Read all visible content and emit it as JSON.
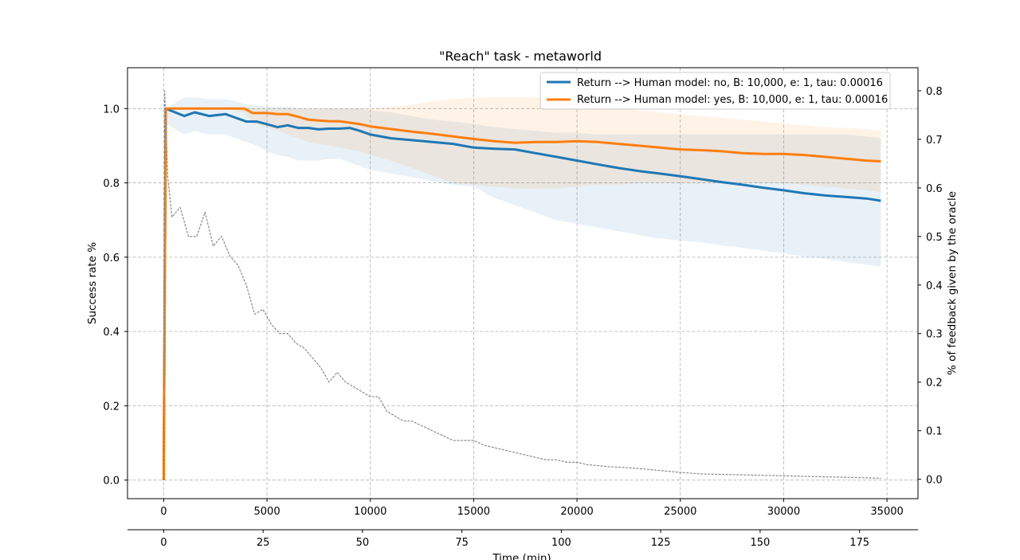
{
  "chart_data": {
    "type": "line",
    "title": "\"Reach\" task - metaworld",
    "ylabel": "Success rate %",
    "ylabel_right": "% of feedback given by the oracle",
    "xlabel_bottom": "Time (min)",
    "xlim": [
      -1750,
      36500
    ],
    "ylim": [
      -0.05,
      1.11
    ],
    "ylim_right": [
      -0.04,
      0.8475
    ],
    "x_ticks": [
      0,
      5000,
      10000,
      15000,
      20000,
      25000,
      30000,
      35000
    ],
    "x_tick_labels": [
      "0",
      "5000",
      "10000",
      "15000",
      "20000",
      "25000",
      "30000",
      "35000"
    ],
    "y_ticks": [
      0.0,
      0.2,
      0.4,
      0.6,
      0.8,
      1.0
    ],
    "y_tick_labels": [
      "0.0",
      "0.2",
      "0.4",
      "0.6",
      "0.8",
      "1.0"
    ],
    "y_right_ticks": [
      0.0,
      0.1,
      0.2,
      0.3,
      0.4,
      0.5,
      0.6,
      0.7,
      0.8
    ],
    "y_right_tick_labels": [
      "0.0",
      "0.1",
      "0.2",
      "0.3",
      "0.4",
      "0.5",
      "0.6",
      "0.7",
      "0.8"
    ],
    "time_ticks_min": [
      0,
      25,
      50,
      75,
      100,
      125,
      150,
      175
    ],
    "time_tick_labels": [
      "0",
      "25",
      "50",
      "75",
      "100",
      "125",
      "150",
      "175"
    ],
    "time_axis_xlim_min": [
      -9.1,
      189.7
    ],
    "grid": true,
    "legend_position": "top-right",
    "series": [
      {
        "name": "Return --> Human model: no, B: 10,000, e: 1, tau: 0.00016",
        "color": "#1f77b4",
        "x": [
          0,
          100,
          1000,
          1500,
          2200,
          3000,
          3500,
          4000,
          4500,
          5000,
          5500,
          6000,
          6500,
          7000,
          7500,
          8000,
          8500,
          9000,
          9500,
          10000,
          11000,
          12000,
          13000,
          14000,
          15000,
          16000,
          17000,
          18000,
          19000,
          20000,
          21000,
          22000,
          23000,
          24000,
          25000,
          26000,
          27000,
          28000,
          29000,
          30000,
          31000,
          32000,
          33000,
          34000,
          34700
        ],
        "y": [
          0.0,
          1.0,
          0.98,
          0.99,
          0.98,
          0.985,
          0.975,
          0.965,
          0.965,
          0.958,
          0.95,
          0.955,
          0.948,
          0.948,
          0.944,
          0.946,
          0.946,
          0.948,
          0.94,
          0.93,
          0.92,
          0.915,
          0.91,
          0.905,
          0.895,
          0.892,
          0.89,
          0.88,
          0.87,
          0.86,
          0.85,
          0.84,
          0.832,
          0.825,
          0.818,
          0.81,
          0.802,
          0.795,
          0.787,
          0.78,
          0.772,
          0.766,
          0.762,
          0.758,
          0.752
        ],
        "band_upper": [
          0.0,
          1.0,
          1.03,
          1.03,
          1.025,
          1.025,
          1.02,
          1.01,
          1.01,
          1.005,
          1.005,
          1.005,
          1.0,
          1.0,
          1.0,
          1.0,
          1.0,
          1.0,
          1.0,
          0.995,
          0.99,
          0.98,
          0.97,
          0.965,
          0.958,
          0.95,
          0.945,
          0.94,
          0.935,
          0.935,
          0.93,
          0.93,
          0.93,
          0.93,
          0.93,
          0.93,
          0.93,
          0.93,
          0.93,
          0.93,
          0.93,
          0.93,
          0.93,
          0.925,
          0.92
        ],
        "band_lower": [
          0.0,
          0.96,
          0.93,
          0.94,
          0.93,
          0.93,
          0.92,
          0.91,
          0.9,
          0.885,
          0.875,
          0.87,
          0.86,
          0.86,
          0.86,
          0.865,
          0.865,
          0.855,
          0.845,
          0.835,
          0.825,
          0.815,
          0.805,
          0.795,
          0.79,
          0.76,
          0.74,
          0.72,
          0.7,
          0.69,
          0.68,
          0.67,
          0.66,
          0.65,
          0.645,
          0.64,
          0.632,
          0.625,
          0.618,
          0.61,
          0.602,
          0.595,
          0.587,
          0.58,
          0.575
        ]
      },
      {
        "name": "Return --> Human model: yes, B: 10,000, e: 1, tau: 0.00016",
        "color": "#ff7f0e",
        "x": [
          0,
          100,
          1000,
          2000,
          3000,
          3900,
          4300,
          5000,
          5500,
          6000,
          6500,
          7000,
          7500,
          8000,
          8500,
          9000,
          9500,
          10000,
          11000,
          12000,
          13000,
          14000,
          15000,
          16000,
          17000,
          18000,
          19000,
          20000,
          21000,
          22000,
          23000,
          24000,
          25000,
          26000,
          27000,
          28000,
          29000,
          30000,
          31000,
          32000,
          33000,
          34000,
          34700
        ],
        "y": [
          0.0,
          1.0,
          1.0,
          1.0,
          1.0,
          1.0,
          0.988,
          0.988,
          0.985,
          0.985,
          0.978,
          0.97,
          0.968,
          0.966,
          0.966,
          0.962,
          0.958,
          0.952,
          0.945,
          0.938,
          0.932,
          0.925,
          0.918,
          0.912,
          0.908,
          0.91,
          0.91,
          0.912,
          0.91,
          0.905,
          0.9,
          0.895,
          0.89,
          0.888,
          0.885,
          0.88,
          0.878,
          0.878,
          0.875,
          0.87,
          0.865,
          0.86,
          0.858
        ],
        "band_upper": [
          0.0,
          1.0,
          1.0,
          1.0,
          1.0,
          1.0,
          1.0,
          1.0,
          1.0,
          1.0,
          1.0,
          1.0,
          1.0,
          1.0,
          1.0,
          1.0,
          1.0,
          1.0,
          1.005,
          1.01,
          1.02,
          1.025,
          1.03,
          1.03,
          1.03,
          1.03,
          1.025,
          1.02,
          1.01,
          1.0,
          0.995,
          0.99,
          0.985,
          0.98,
          0.975,
          0.97,
          0.965,
          0.96,
          0.955,
          0.95,
          0.948,
          0.945,
          0.94
        ],
        "band_lower": [
          0.0,
          1.0,
          1.0,
          1.0,
          1.0,
          0.99,
          0.96,
          0.95,
          0.94,
          0.93,
          0.92,
          0.91,
          0.905,
          0.9,
          0.895,
          0.89,
          0.885,
          0.875,
          0.86,
          0.84,
          0.82,
          0.8,
          0.795,
          0.79,
          0.785,
          0.785,
          0.785,
          0.79,
          0.795,
          0.795,
          0.8,
          0.8,
          0.8,
          0.8,
          0.8,
          0.8,
          0.8,
          0.8,
          0.795,
          0.79,
          0.785,
          0.78,
          0.775
        ]
      },
      {
        "name": "",
        "axis": "right",
        "color": "#808080",
        "style": "dashed",
        "x": [
          0,
          50,
          200,
          400,
          800,
          1200,
          1600,
          2000,
          2400,
          2800,
          3200,
          3600,
          4000,
          4400,
          4800,
          5200,
          5600,
          6000,
          6400,
          6800,
          7200,
          7600,
          8000,
          8400,
          8800,
          9200,
          9600,
          10000,
          10400,
          10800,
          11200,
          11600,
          12000,
          12500,
          13000,
          13500,
          14000,
          14500,
          15000,
          15500,
          16000,
          16500,
          17000,
          17500,
          18000,
          18500,
          19000,
          19500,
          20000,
          20500,
          21000,
          21500,
          22000,
          23000,
          24000,
          25000,
          26000,
          27000,
          28000,
          29000,
          30000,
          31000,
          32000,
          33000,
          34000,
          34700
        ],
        "y": [
          0.0,
          0.8,
          0.62,
          0.54,
          0.56,
          0.5,
          0.5,
          0.55,
          0.48,
          0.5,
          0.46,
          0.44,
          0.4,
          0.34,
          0.35,
          0.32,
          0.3,
          0.3,
          0.28,
          0.27,
          0.25,
          0.23,
          0.2,
          0.22,
          0.2,
          0.19,
          0.18,
          0.17,
          0.17,
          0.14,
          0.13,
          0.12,
          0.12,
          0.11,
          0.1,
          0.09,
          0.08,
          0.08,
          0.08,
          0.07,
          0.065,
          0.06,
          0.055,
          0.05,
          0.045,
          0.04,
          0.04,
          0.035,
          0.035,
          0.03,
          0.028,
          0.026,
          0.025,
          0.022,
          0.018,
          0.014,
          0.011,
          0.01,
          0.009,
          0.008,
          0.007,
          0.006,
          0.005,
          0.004,
          0.003,
          0.002
        ]
      }
    ]
  }
}
